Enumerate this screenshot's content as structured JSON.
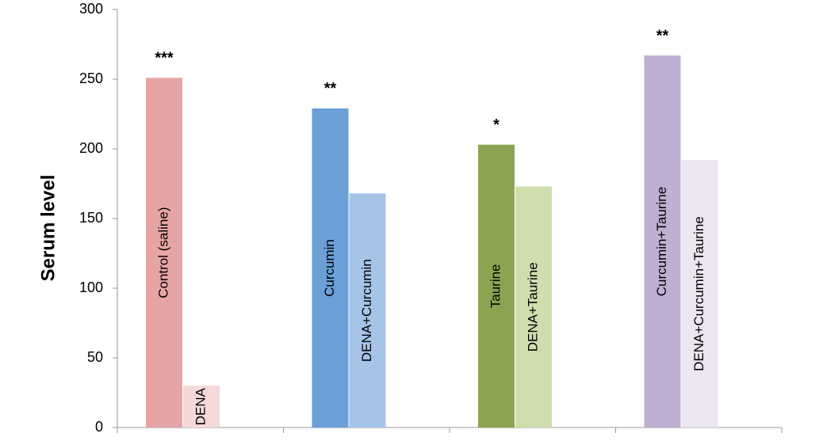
{
  "chart_data": {
    "type": "bar",
    "y_label": "Serum level",
    "categories": [
      "Control (saline)",
      "DENA",
      "Curcumin",
      "DENA+Curcumin",
      "Taurine",
      "DENA+Taurine",
      "Curcumin+Taurine",
      "DENA+Curcumin+Taurine"
    ],
    "values": [
      251,
      30,
      229,
      168,
      203,
      173,
      267,
      192
    ],
    "colors": [
      "#e6a5a4",
      "#f4d9d8",
      "#6a9fd8",
      "#a6c3e8",
      "#8aa552",
      "#cfdeae",
      "#bfafd2",
      "#ebe6ef"
    ],
    "annotations": [
      "***",
      null,
      "**",
      null,
      "*",
      null,
      "**",
      null
    ],
    "ylim": [
      0,
      300
    ],
    "yticks": [
      0,
      50,
      100,
      150,
      200,
      250,
      300
    ],
    "grid": false
  }
}
